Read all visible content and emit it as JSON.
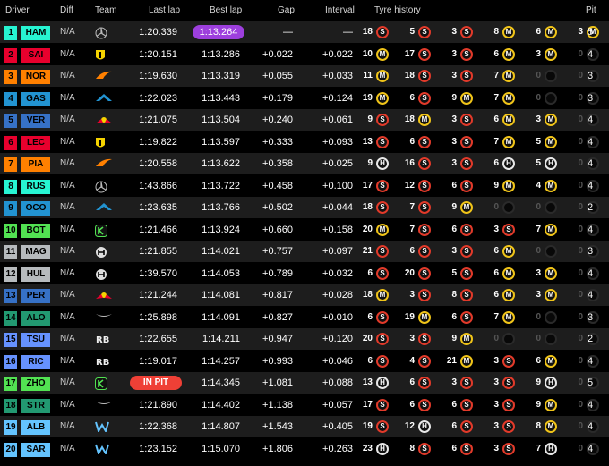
{
  "columns": {
    "driver": "Driver",
    "diff": "Diff",
    "team": "Team",
    "last_lap": "Last lap",
    "best_lap": "Best lap",
    "gap": "Gap",
    "interval": "Interval",
    "tyre_history": "Tyre history",
    "pit": "Pit"
  },
  "rows": [
    {
      "pos": "1",
      "code": "HAM",
      "color": "#27f4d2",
      "diff": "N/A",
      "team": "mercedes",
      "last": "1:20.339",
      "best": "1:13.264",
      "best_purple": true,
      "gap": "—",
      "interval": "—",
      "stints": [
        {
          "laps": "18",
          "c": "S"
        },
        {
          "laps": "5",
          "c": "S"
        },
        {
          "laps": "3",
          "c": "S"
        },
        {
          "laps": "8",
          "c": "M"
        },
        {
          "laps": "6",
          "c": "M"
        },
        {
          "laps": "3",
          "c": "M"
        }
      ],
      "pit": "5"
    },
    {
      "pos": "2",
      "code": "SAI",
      "color": "#e8002d",
      "diff": "N/A",
      "team": "ferrari",
      "last": "1:20.151",
      "best": "1:13.286",
      "gap": "+0.022",
      "interval": "+0.022",
      "stints": [
        {
          "laps": "10",
          "c": "M"
        },
        {
          "laps": "17",
          "c": "S"
        },
        {
          "laps": "3",
          "c": "S"
        },
        {
          "laps": "6",
          "c": "M"
        },
        {
          "laps": "3",
          "c": "M"
        },
        {
          "laps": "0",
          "c": "E"
        }
      ],
      "pit": "4"
    },
    {
      "pos": "3",
      "code": "NOR",
      "color": "#ff8000",
      "diff": "N/A",
      "team": "mclaren",
      "last": "1:19.630",
      "best": "1:13.319",
      "gap": "+0.055",
      "interval": "+0.033",
      "stints": [
        {
          "laps": "11",
          "c": "M"
        },
        {
          "laps": "18",
          "c": "S"
        },
        {
          "laps": "3",
          "c": "S"
        },
        {
          "laps": "7",
          "c": "M"
        },
        {
          "laps": "0",
          "c": "E"
        },
        {
          "laps": "0",
          "c": "E"
        }
      ],
      "pit": "3"
    },
    {
      "pos": "4",
      "code": "GAS",
      "color": "#2293d1",
      "diff": "N/A",
      "team": "alpine",
      "last": "1:22.023",
      "best": "1:13.443",
      "gap": "+0.179",
      "interval": "+0.124",
      "stints": [
        {
          "laps": "19",
          "c": "M"
        },
        {
          "laps": "6",
          "c": "S"
        },
        {
          "laps": "9",
          "c": "M"
        },
        {
          "laps": "7",
          "c": "M"
        },
        {
          "laps": "0",
          "c": "E"
        },
        {
          "laps": "0",
          "c": "E"
        }
      ],
      "pit": "3"
    },
    {
      "pos": "5",
      "code": "VER",
      "color": "#3671c6",
      "diff": "N/A",
      "team": "redbull",
      "last": "1:21.075",
      "best": "1:13.504",
      "gap": "+0.240",
      "interval": "+0.061",
      "stints": [
        {
          "laps": "9",
          "c": "S"
        },
        {
          "laps": "18",
          "c": "M"
        },
        {
          "laps": "3",
          "c": "S"
        },
        {
          "laps": "6",
          "c": "M"
        },
        {
          "laps": "3",
          "c": "M"
        },
        {
          "laps": "0",
          "c": "E"
        }
      ],
      "pit": "4"
    },
    {
      "pos": "6",
      "code": "LEC",
      "color": "#e8002d",
      "diff": "N/A",
      "team": "ferrari",
      "last": "1:19.822",
      "best": "1:13.597",
      "gap": "+0.333",
      "interval": "+0.093",
      "stints": [
        {
          "laps": "13",
          "c": "S"
        },
        {
          "laps": "6",
          "c": "S"
        },
        {
          "laps": "3",
          "c": "S"
        },
        {
          "laps": "7",
          "c": "M"
        },
        {
          "laps": "5",
          "c": "M"
        },
        {
          "laps": "0",
          "c": "E"
        }
      ],
      "pit": "4"
    },
    {
      "pos": "7",
      "code": "PIA",
      "color": "#ff8000",
      "diff": "N/A",
      "team": "mclaren",
      "last": "1:20.558",
      "best": "1:13.622",
      "gap": "+0.358",
      "interval": "+0.025",
      "stints": [
        {
          "laps": "9",
          "c": "H"
        },
        {
          "laps": "16",
          "c": "S"
        },
        {
          "laps": "3",
          "c": "S"
        },
        {
          "laps": "6",
          "c": "H"
        },
        {
          "laps": "5",
          "c": "H"
        },
        {
          "laps": "0",
          "c": "E"
        }
      ],
      "pit": "4"
    },
    {
      "pos": "8",
      "code": "RUS",
      "color": "#27f4d2",
      "diff": "N/A",
      "team": "mercedes",
      "last": "1:43.866",
      "best": "1:13.722",
      "gap": "+0.458",
      "interval": "+0.100",
      "stints": [
        {
          "laps": "17",
          "c": "S"
        },
        {
          "laps": "12",
          "c": "S"
        },
        {
          "laps": "6",
          "c": "S"
        },
        {
          "laps": "9",
          "c": "M"
        },
        {
          "laps": "4",
          "c": "M"
        },
        {
          "laps": "0",
          "c": "E"
        }
      ],
      "pit": "4"
    },
    {
      "pos": "9",
      "code": "OCO",
      "color": "#2293d1",
      "diff": "N/A",
      "team": "alpine",
      "last": "1:23.635",
      "best": "1:13.766",
      "gap": "+0.502",
      "interval": "+0.044",
      "stints": [
        {
          "laps": "18",
          "c": "S"
        },
        {
          "laps": "7",
          "c": "S"
        },
        {
          "laps": "9",
          "c": "M"
        },
        {
          "laps": "0",
          "c": "E"
        },
        {
          "laps": "0",
          "c": "E"
        },
        {
          "laps": "0",
          "c": "E"
        }
      ],
      "pit": "2"
    },
    {
      "pos": "10",
      "code": "BOT",
      "color": "#52e252",
      "diff": "N/A",
      "team": "kick",
      "last": "1:21.466",
      "best": "1:13.924",
      "gap": "+0.660",
      "interval": "+0.158",
      "stints": [
        {
          "laps": "20",
          "c": "M"
        },
        {
          "laps": "7",
          "c": "S"
        },
        {
          "laps": "6",
          "c": "S"
        },
        {
          "laps": "3",
          "c": "S"
        },
        {
          "laps": "7",
          "c": "M"
        },
        {
          "laps": "0",
          "c": "E"
        }
      ],
      "pit": "4"
    },
    {
      "pos": "11",
      "code": "MAG",
      "color": "#b6babd",
      "diff": "N/A",
      "team": "haas",
      "last": "1:21.855",
      "best": "1:14.021",
      "gap": "+0.757",
      "interval": "+0.097",
      "stints": [
        {
          "laps": "21",
          "c": "S"
        },
        {
          "laps": "6",
          "c": "S"
        },
        {
          "laps": "3",
          "c": "S"
        },
        {
          "laps": "6",
          "c": "M"
        },
        {
          "laps": "0",
          "c": "E"
        },
        {
          "laps": "0",
          "c": "E"
        }
      ],
      "pit": "3"
    },
    {
      "pos": "12",
      "code": "HUL",
      "color": "#b6babd",
      "diff": "N/A",
      "team": "haas",
      "last": "1:39.570",
      "best": "1:14.053",
      "gap": "+0.789",
      "interval": "+0.032",
      "stints": [
        {
          "laps": "6",
          "c": "S"
        },
        {
          "laps": "20",
          "c": "S"
        },
        {
          "laps": "5",
          "c": "S"
        },
        {
          "laps": "6",
          "c": "M"
        },
        {
          "laps": "3",
          "c": "M"
        },
        {
          "laps": "0",
          "c": "E"
        }
      ],
      "pit": "4"
    },
    {
      "pos": "13",
      "code": "PER",
      "color": "#3671c6",
      "diff": "N/A",
      "team": "redbull",
      "last": "1:21.244",
      "best": "1:14.081",
      "gap": "+0.817",
      "interval": "+0.028",
      "stints": [
        {
          "laps": "18",
          "c": "M"
        },
        {
          "laps": "3",
          "c": "S"
        },
        {
          "laps": "8",
          "c": "S"
        },
        {
          "laps": "6",
          "c": "M"
        },
        {
          "laps": "3",
          "c": "M"
        },
        {
          "laps": "0",
          "c": "E"
        }
      ],
      "pit": "4"
    },
    {
      "pos": "14",
      "code": "ALO",
      "color": "#229971",
      "diff": "N/A",
      "team": "aston",
      "last": "1:25.898",
      "best": "1:14.091",
      "gap": "+0.827",
      "interval": "+0.010",
      "stints": [
        {
          "laps": "6",
          "c": "S"
        },
        {
          "laps": "19",
          "c": "M"
        },
        {
          "laps": "6",
          "c": "S"
        },
        {
          "laps": "7",
          "c": "M"
        },
        {
          "laps": "0",
          "c": "E"
        },
        {
          "laps": "0",
          "c": "E"
        }
      ],
      "pit": "3"
    },
    {
      "pos": "15",
      "code": "TSU",
      "color": "#6692ff",
      "diff": "N/A",
      "team": "rb",
      "last": "1:22.655",
      "best": "1:14.211",
      "gap": "+0.947",
      "interval": "+0.120",
      "stints": [
        {
          "laps": "20",
          "c": "S"
        },
        {
          "laps": "3",
          "c": "S"
        },
        {
          "laps": "9",
          "c": "M"
        },
        {
          "laps": "0",
          "c": "E"
        },
        {
          "laps": "0",
          "c": "E"
        },
        {
          "laps": "0",
          "c": "E"
        }
      ],
      "pit": "2"
    },
    {
      "pos": "16",
      "code": "RIC",
      "color": "#6692ff",
      "diff": "N/A",
      "team": "rb",
      "last": "1:19.017",
      "best": "1:14.257",
      "gap": "+0.993",
      "interval": "+0.046",
      "stints": [
        {
          "laps": "6",
          "c": "S"
        },
        {
          "laps": "4",
          "c": "S"
        },
        {
          "laps": "21",
          "c": "M"
        },
        {
          "laps": "3",
          "c": "S"
        },
        {
          "laps": "6",
          "c": "M"
        },
        {
          "laps": "0",
          "c": "E"
        }
      ],
      "pit": "4"
    },
    {
      "pos": "17",
      "code": "ZHO",
      "color": "#52e252",
      "diff": "N/A",
      "team": "kick",
      "last": "IN PIT",
      "last_pit": true,
      "best": "1:14.345",
      "gap": "+1.081",
      "interval": "+0.088",
      "stints": [
        {
          "laps": "13",
          "c": "H"
        },
        {
          "laps": "6",
          "c": "S"
        },
        {
          "laps": "3",
          "c": "S"
        },
        {
          "laps": "3",
          "c": "S"
        },
        {
          "laps": "9",
          "c": "H"
        },
        {
          "laps": "0",
          "c": "E"
        }
      ],
      "pit": "5"
    },
    {
      "pos": "18",
      "code": "STR",
      "color": "#229971",
      "diff": "N/A",
      "team": "aston",
      "last": "1:21.890",
      "best": "1:14.402",
      "gap": "+1.138",
      "interval": "+0.057",
      "stints": [
        {
          "laps": "17",
          "c": "S"
        },
        {
          "laps": "6",
          "c": "S"
        },
        {
          "laps": "6",
          "c": "S"
        },
        {
          "laps": "3",
          "c": "S"
        },
        {
          "laps": "9",
          "c": "M"
        },
        {
          "laps": "0",
          "c": "E"
        }
      ],
      "pit": "4"
    },
    {
      "pos": "19",
      "code": "ALB",
      "color": "#64c4ff",
      "diff": "N/A",
      "team": "williams",
      "last": "1:22.368",
      "best": "1:14.807",
      "gap": "+1.543",
      "interval": "+0.405",
      "stints": [
        {
          "laps": "19",
          "c": "S"
        },
        {
          "laps": "12",
          "c": "H"
        },
        {
          "laps": "6",
          "c": "S"
        },
        {
          "laps": "3",
          "c": "S"
        },
        {
          "laps": "8",
          "c": "M"
        },
        {
          "laps": "0",
          "c": "E"
        }
      ],
      "pit": "4"
    },
    {
      "pos": "20",
      "code": "SAR",
      "color": "#64c4ff",
      "diff": "N/A",
      "team": "williams",
      "last": "1:23.152",
      "best": "1:15.070",
      "gap": "+1.806",
      "interval": "+0.263",
      "stints": [
        {
          "laps": "23",
          "c": "H"
        },
        {
          "laps": "8",
          "c": "S"
        },
        {
          "laps": "6",
          "c": "S"
        },
        {
          "laps": "3",
          "c": "S"
        },
        {
          "laps": "7",
          "c": "H"
        },
        {
          "laps": "0",
          "c": "E"
        }
      ],
      "pit": "4"
    }
  ]
}
